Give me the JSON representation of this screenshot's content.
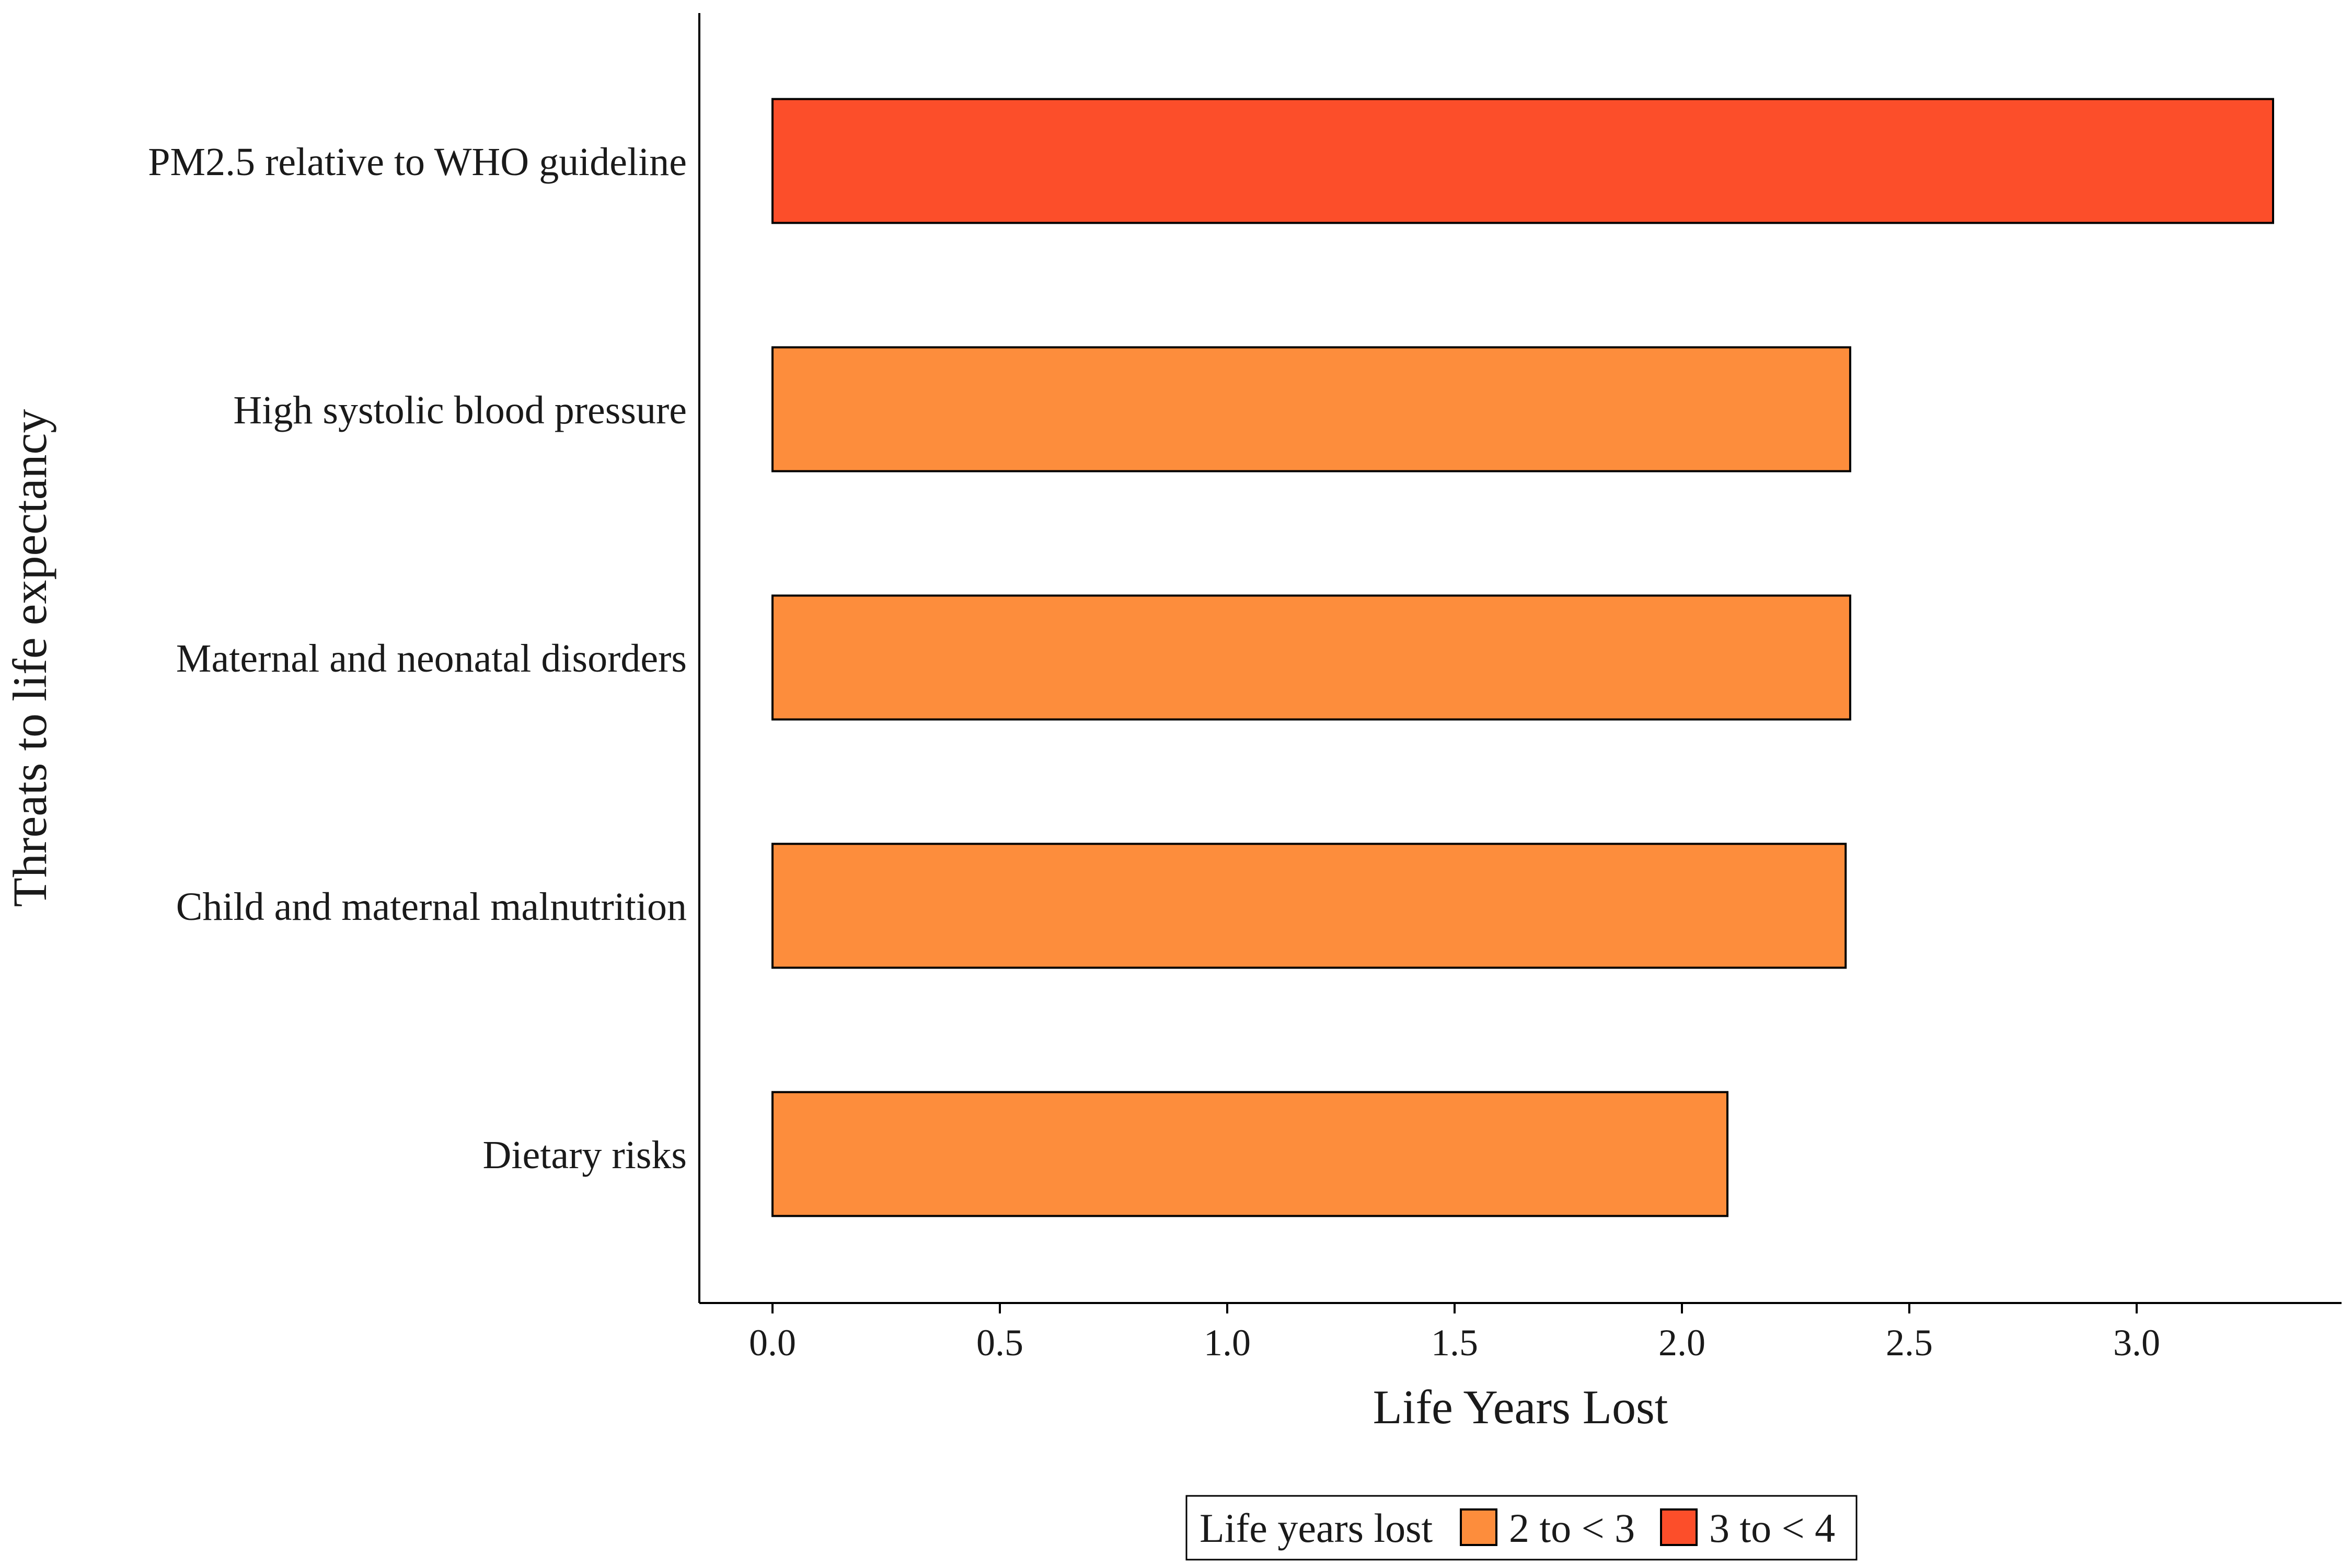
{
  "chart_data": {
    "type": "bar",
    "orientation": "horizontal",
    "title": "",
    "xlabel": "Life Years Lost",
    "ylabel": "Threats to life expectancy",
    "categories": [
      "PM2.5 relative to WHO guideline",
      "High systolic blood pressure",
      "Maternal and neonatal disorders",
      "Child and maternal malnutrition",
      "Dietary risks"
    ],
    "values": [
      3.3,
      2.37,
      2.37,
      2.36,
      2.1
    ],
    "value_group": [
      "3 to < 4",
      "2 to < 3",
      "2 to < 3",
      "2 to < 3",
      "2 to < 3"
    ],
    "xticks": [
      "0.0",
      "0.5",
      "1.0",
      "1.5",
      "2.0",
      "2.5",
      "3.0"
    ],
    "xlim": [
      -0.16,
      3.45
    ],
    "grid": false,
    "legend": {
      "title": "Life years lost",
      "placement": "bottom",
      "entries": [
        {
          "label": "2 to < 3",
          "color": "#fd8d3c"
        },
        {
          "label": "3 to < 4",
          "color": "#fc4e2a"
        }
      ]
    }
  }
}
